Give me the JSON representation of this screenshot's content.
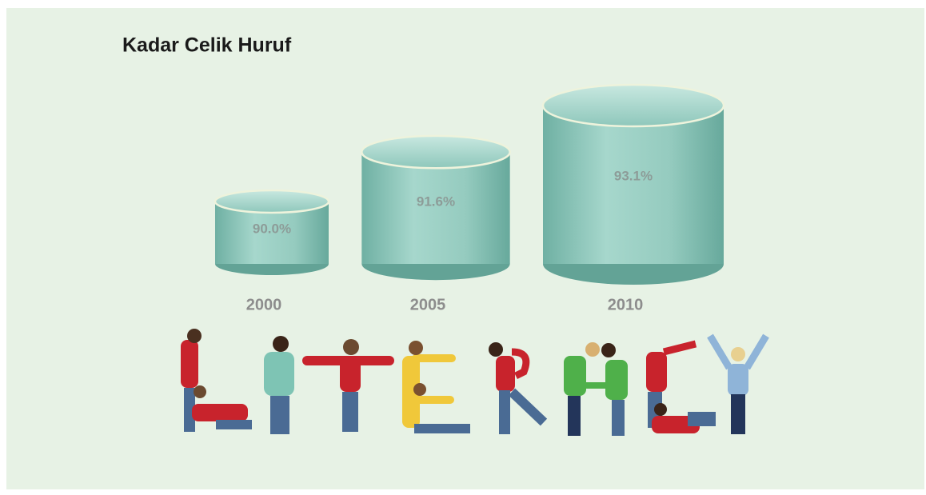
{
  "chart_data": {
    "type": "cylinder",
    "title": "Kadar Celik Huruf",
    "categories": [
      "2000",
      "2005",
      "2010"
    ],
    "values": [
      90.0,
      91.6,
      93.1
    ],
    "value_labels": [
      "90.0%",
      "91.6%",
      "93.1%"
    ],
    "color": "#8fc9bd"
  }
}
